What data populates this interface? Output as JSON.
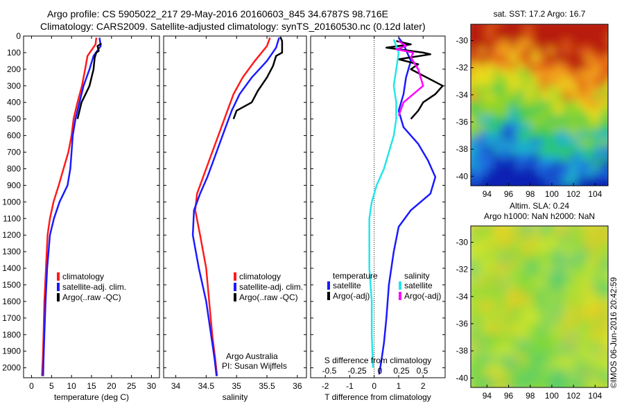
{
  "header": {
    "line1": "Argo profile: CS 5905022_217 29-May-2016 20160603_845 34.6787S 98.716E",
    "line2": "Climatology: CARS2009. Satellite-adjusted climatology: synTS_20160530.nc (0.12d later)"
  },
  "colors": {
    "climatology": "#ff1a1a",
    "satellite": "#1a1aff",
    "argo": "#000000",
    "cyan": "#22e6e6",
    "magenta": "#ff00ff"
  },
  "depth_axis": {
    "ticks": [
      0,
      100,
      200,
      300,
      400,
      500,
      600,
      700,
      800,
      900,
      1000,
      1100,
      1200,
      1300,
      1400,
      1500,
      1600,
      1700,
      1800,
      1900,
      2000
    ],
    "range": [
      0,
      2060
    ]
  },
  "chart_data": [
    {
      "type": "line",
      "name": "temperature-panel",
      "xlabel": "temperature (deg C)",
      "xlim": [
        -2,
        32
      ],
      "xticks": [
        0,
        5,
        10,
        15,
        20,
        25,
        30
      ],
      "legend": [
        "climatology",
        "satellite-adj. clim.",
        "Argo(..raw -QC)"
      ],
      "series": [
        {
          "name": "climatology",
          "color_key": "climatology",
          "x": [
            16.2,
            16.0,
            14.0,
            13.4,
            12.6,
            11.5,
            10.5,
            10.0,
            9.2,
            8.0,
            6.8,
            5.5,
            4.6,
            4.0,
            3.6,
            3.2,
            3.0,
            2.8,
            2.6
          ],
          "y": [
            10,
            50,
            120,
            200,
            300,
            400,
            500,
            600,
            700,
            800,
            900,
            1000,
            1100,
            1200,
            1400,
            1600,
            1800,
            1950,
            2050
          ]
        },
        {
          "name": "satellite-adj. clim.",
          "color_key": "satellite",
          "x": [
            17.0,
            17.3,
            15.5,
            14.5,
            13.0,
            12.0,
            11.0,
            10.3,
            10.0,
            9.7,
            9.0,
            7.0,
            5.6,
            4.6,
            3.9,
            3.5,
            3.2,
            3.0,
            2.9
          ],
          "y": [
            10,
            60,
            120,
            200,
            300,
            400,
            500,
            600,
            700,
            800,
            900,
            1000,
            1100,
            1200,
            1400,
            1600,
            1800,
            1950,
            2050
          ]
        },
        {
          "name": "Argo(..raw -QC)",
          "color_key": "argo",
          "x": [
            17.5,
            16.5,
            16.8,
            16.2,
            15.8,
            15.5,
            14.5,
            13.5,
            12.5,
            12.0,
            11.5
          ],
          "y": [
            45,
            60,
            90,
            100,
            130,
            200,
            300,
            350,
            400,
            450,
            500
          ]
        }
      ]
    },
    {
      "type": "line",
      "name": "salinity-panel",
      "xlabel": "salinity",
      "xlim": [
        33.8,
        36.15
      ],
      "xticks": [
        34,
        34.5,
        35,
        35.5,
        36
      ],
      "legend": [
        "climatology",
        "satellite-adj. clim.",
        "Argo(..raw -QC)"
      ],
      "footnote": [
        "Argo Australia",
        "PI: Susan Wijffels"
      ],
      "series": [
        {
          "name": "climatology",
          "color_key": "climatology",
          "x": [
            35.55,
            35.5,
            35.3,
            35.1,
            34.95,
            34.85,
            34.75,
            34.65,
            34.55,
            34.45,
            34.35,
            34.32,
            34.4,
            34.5,
            34.55,
            34.6,
            34.65,
            34.68
          ],
          "y": [
            10,
            60,
            150,
            250,
            350,
            450,
            550,
            650,
            750,
            850,
            950,
            1050,
            1200,
            1400,
            1600,
            1800,
            1950,
            2050
          ]
        },
        {
          "name": "satellite-adj. clim.",
          "color_key": "satellite",
          "x": [
            35.7,
            35.65,
            35.5,
            35.25,
            35.05,
            34.92,
            34.82,
            34.72,
            34.62,
            34.52,
            34.4,
            34.3,
            34.28,
            34.38,
            34.5,
            34.58,
            34.64,
            34.67
          ],
          "y": [
            10,
            70,
            150,
            250,
            350,
            450,
            550,
            650,
            750,
            850,
            950,
            1050,
            1200,
            1400,
            1600,
            1800,
            1950,
            2050
          ]
        },
        {
          "name": "Argo(..raw -QC)",
          "color_key": "argo",
          "x": [
            35.72,
            35.75,
            35.75,
            35.65,
            35.6,
            35.5,
            35.35,
            35.25,
            35.0,
            34.95
          ],
          "y": [
            5,
            30,
            100,
            120,
            180,
            250,
            330,
            400,
            450,
            500
          ]
        }
      ]
    },
    {
      "type": "line",
      "name": "difference-panel",
      "xlabel": "T difference from climatology",
      "xlim": [
        -2.6,
        2.9
      ],
      "xticks": [
        -2,
        -1,
        0,
        1,
        2
      ],
      "x2label": "S difference from climatology",
      "x2ticks": [
        -0.5,
        -0.25,
        0,
        0.25,
        0.5
      ],
      "x2ticklabels": [
        "-0.5",
        "-0.25",
        "0",
        "0.25",
        "0.5"
      ],
      "legend_temperature": {
        "title": "temperature",
        "items": [
          "satellite",
          "Argo(-adj)"
        ]
      },
      "legend_salinity": {
        "title": "salinity",
        "items": [
          "satellite",
          "Argo(-adj)"
        ]
      },
      "series": [
        {
          "name": "temperature satellite",
          "color_key": "satellite",
          "x": [
            1.0,
            1.2,
            1.5,
            1.3,
            1.2,
            1.0,
            1.2,
            1.8,
            2.2,
            2.5,
            2.3,
            1.5,
            1.0,
            0.8,
            0.6,
            0.5,
            0.4,
            0.3,
            0.2
          ],
          "y": [
            10,
            50,
            150,
            250,
            350,
            450,
            550,
            650,
            750,
            850,
            950,
            1050,
            1150,
            1300,
            1500,
            1700,
            1850,
            1950,
            2040
          ]
        },
        {
          "name": "temperature Argo(-adj)",
          "color_key": "argo",
          "x": [
            0.9,
            1.5,
            0.5,
            2.0,
            2.3,
            1.0,
            1.8,
            1.5,
            2.8,
            2.5,
            2.0,
            1.8,
            1.5
          ],
          "y": [
            30,
            50,
            70,
            100,
            110,
            140,
            170,
            200,
            300,
            350,
            400,
            450,
            500
          ]
        },
        {
          "name": "salinity satellite",
          "color_key": "cyan",
          "x": [
            0.8,
            1.0,
            0.9,
            0.8,
            0.9,
            0.9,
            0.8,
            0.6,
            0.4,
            0.1,
            -0.1,
            -0.2,
            -0.2,
            -0.2,
            -0.1,
            -0.1,
            -0.05
          ],
          "y": [
            20,
            100,
            200,
            300,
            400,
            500,
            600,
            700,
            800,
            900,
            1000,
            1100,
            1200,
            1400,
            1600,
            1800,
            2000
          ]
        },
        {
          "name": "salinity Argo(-adj)",
          "color_key": "magenta",
          "x": [
            1.0,
            1.3,
            0.9,
            1.6,
            1.5,
            1.8,
            2.0,
            1.6,
            1.2,
            1.0
          ],
          "y": [
            30,
            60,
            80,
            100,
            130,
            200,
            300,
            350,
            400,
            480
          ]
        }
      ]
    },
    {
      "type": "heatmap",
      "name": "sst-map",
      "title": "sat. SST: 17.2  Argo: 16.7",
      "xticks": [
        94,
        96,
        98,
        100,
        102,
        104
      ],
      "yticks": [
        -30,
        -32,
        -34,
        -36,
        -38,
        -40
      ],
      "xlim": [
        92.5,
        105.2
      ],
      "ylim": [
        -40.7,
        -28.8
      ],
      "argo_location": [
        98.716,
        -34.6787
      ]
    },
    {
      "type": "heatmap",
      "name": "sla-map",
      "title": "Altim. SLA: 0.24",
      "subtitle": "Argo h1000: NaN h2000: NaN",
      "xticks": [
        94,
        96,
        98,
        100,
        102,
        104
      ],
      "yticks": [
        -30,
        -32,
        -34,
        -36,
        -38,
        -40
      ],
      "xlim": [
        92.5,
        105.2
      ],
      "ylim": [
        -40.7,
        -28.8
      ]
    }
  ],
  "credit": "©IMOS 06-Jun-2016 20:42:59"
}
